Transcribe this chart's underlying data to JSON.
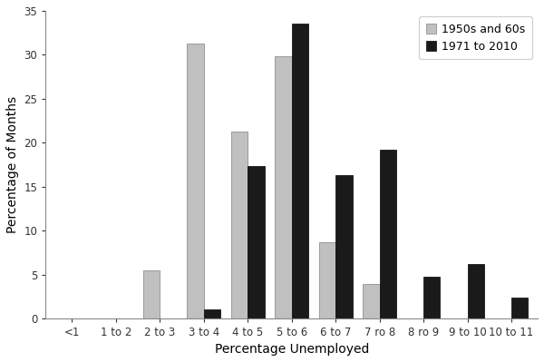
{
  "categories": [
    "<1",
    "1 to 2",
    "2 to 3",
    "3 to 4",
    "4 to 5",
    "5 to 6",
    "6 to 7",
    "7 ro 8",
    "8 ro 9",
    "9 to 10",
    "10 to 11"
  ],
  "series1_label": "1950s and 60s",
  "series2_label": "1971 to 2010",
  "series1_values": [
    0,
    0,
    5.5,
    31.3,
    21.3,
    29.8,
    8.7,
    3.9,
    0,
    0,
    0
  ],
  "series2_values": [
    0,
    0,
    0,
    1.0,
    17.3,
    33.5,
    16.3,
    19.2,
    4.8,
    6.2,
    2.4
  ],
  "series1_color": "#c0c0c0",
  "series2_color": "#1a1a1a",
  "series1_edgecolor": "#808080",
  "series2_edgecolor": "#000000",
  "ylabel": "Percentage of Months",
  "xlabel": "Percentage Unemployed",
  "ylim": [
    0,
    35
  ],
  "yticks": [
    0,
    5,
    10,
    15,
    20,
    25,
    30,
    35
  ],
  "bar_width": 0.38,
  "background_color": "#ffffff",
  "legend_fontsize": 9,
  "axis_fontsize": 10,
  "tick_fontsize": 8.5,
  "figsize": [
    6.0,
    3.99
  ],
  "dpi": 100
}
